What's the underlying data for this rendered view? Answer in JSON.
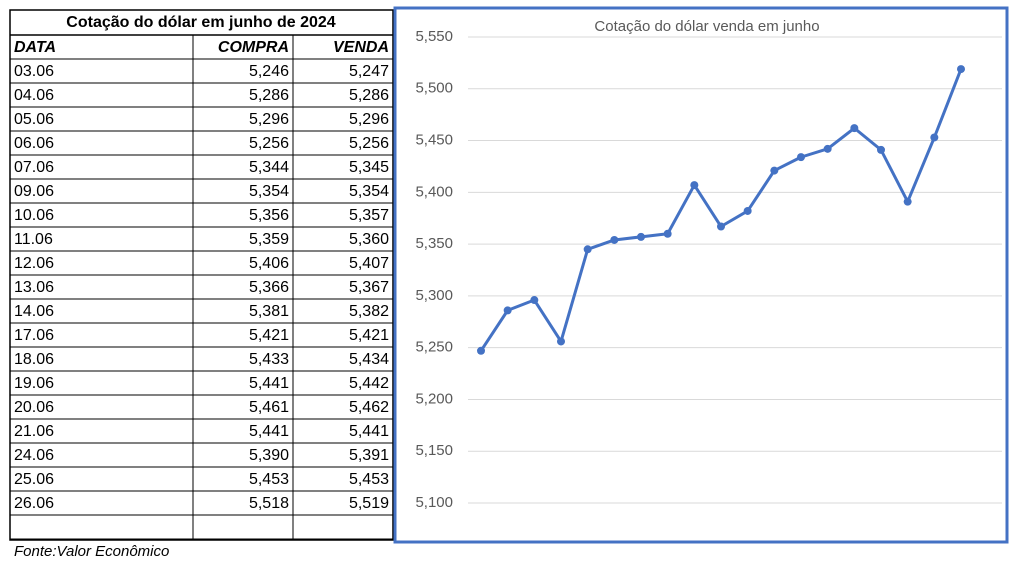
{
  "table": {
    "title": "Cotação do dólar em junho de 2024",
    "headers": [
      "DATA",
      "COMPRA",
      "VENDA"
    ],
    "rows": [
      [
        "03.06",
        "5,246",
        "5,247"
      ],
      [
        "04.06",
        "5,286",
        "5,286"
      ],
      [
        "05.06",
        "5,296",
        "5,296"
      ],
      [
        "06.06",
        "5,256",
        "5,256"
      ],
      [
        "07.06",
        "5,344",
        "5,345"
      ],
      [
        "09.06",
        "5,354",
        "5,354"
      ],
      [
        "10.06",
        "5,356",
        "5,357"
      ],
      [
        "11.06",
        "5,359",
        "5,360"
      ],
      [
        "12.06",
        "5,406",
        "5,407"
      ],
      [
        "13.06",
        "5,366",
        "5,367"
      ],
      [
        "14.06",
        "5,381",
        "5,382"
      ],
      [
        "17.06",
        "5,421",
        "5,421"
      ],
      [
        "18.06",
        "5,433",
        "5,434"
      ],
      [
        "19.06",
        "5,441",
        "5,442"
      ],
      [
        "20.06",
        "5,461",
        "5,462"
      ],
      [
        "21.06",
        "5,441",
        "5,441"
      ],
      [
        "24.06",
        "5,390",
        "5,391"
      ],
      [
        "25.06",
        "5,453",
        "5,453"
      ],
      [
        "26.06",
        "5,518",
        "5,519"
      ]
    ]
  },
  "footer": "Fonte:Valor Econômico",
  "chart_data": {
    "type": "line",
    "title": "Cotação do dólar venda  em junho",
    "color": "#4472c4",
    "values": [
      5.247,
      5.286,
      5.296,
      5.256,
      5.345,
      5.354,
      5.357,
      5.36,
      5.407,
      5.367,
      5.382,
      5.421,
      5.434,
      5.442,
      5.462,
      5.441,
      5.391,
      5.453,
      5.519
    ],
    "ylim": [
      5.1,
      5.55
    ],
    "yticks": [
      {
        "value": 5.1,
        "label": "5,100"
      },
      {
        "value": 5.15,
        "label": "5,150"
      },
      {
        "value": 5.2,
        "label": "5,200"
      },
      {
        "value": 5.25,
        "label": "5,250"
      },
      {
        "value": 5.3,
        "label": "5,300"
      },
      {
        "value": 5.35,
        "label": "5,350"
      },
      {
        "value": 5.4,
        "label": "5,400"
      },
      {
        "value": 5.45,
        "label": "5,450"
      },
      {
        "value": 5.5,
        "label": "5,500"
      },
      {
        "value": 5.55,
        "label": "5,550"
      }
    ],
    "grid": true
  }
}
